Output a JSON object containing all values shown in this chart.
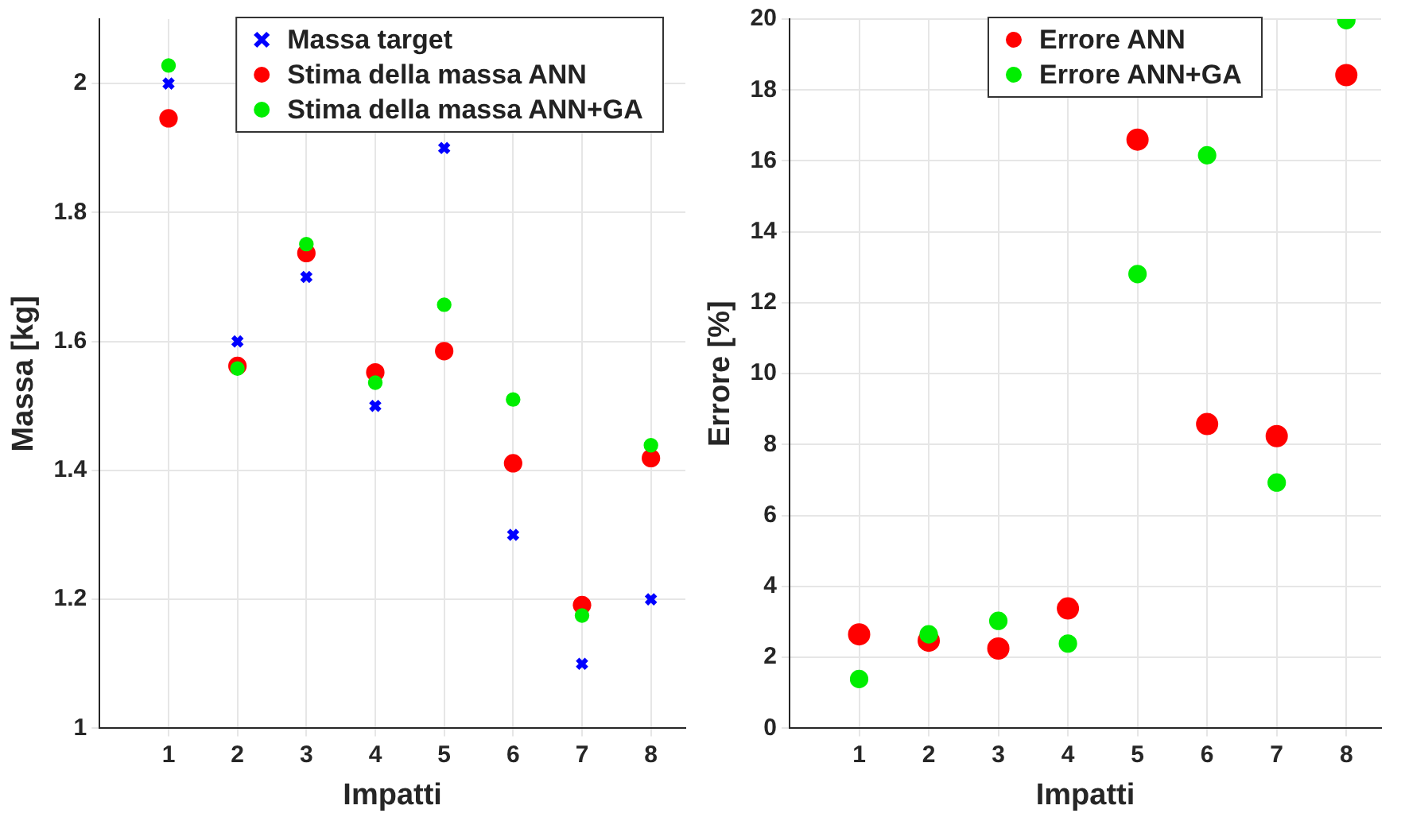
{
  "chart_data": [
    {
      "type": "scatter",
      "xlabel": "Impatti",
      "ylabel": "Massa [kg]",
      "x": [
        1,
        2,
        3,
        4,
        5,
        6,
        7,
        8
      ],
      "xlim": [
        0,
        8.5
      ],
      "xticks": [
        1,
        2,
        3,
        4,
        5,
        6,
        7,
        8
      ],
      "ylim": [
        1,
        2.1
      ],
      "yticks": [
        1,
        1.2,
        1.4,
        1.6,
        1.8,
        2
      ],
      "grid": true,
      "legend": "top right",
      "series": [
        {
          "name": "Massa target",
          "color": "#0000ff",
          "marker": "cross",
          "values": [
            2.0,
            1.6,
            1.7,
            1.5,
            1.9,
            1.3,
            1.1,
            1.2
          ]
        },
        {
          "name": "Stima della massa ANN",
          "color": "#ff0000",
          "marker": "circle",
          "values": [
            1.946,
            1.562,
            1.737,
            1.552,
            1.585,
            1.411,
            1.191,
            1.419
          ]
        },
        {
          "name": "Stima della massa ANN+GA",
          "color": "#00ee00",
          "marker": "circle",
          "values": [
            2.028,
            1.558,
            1.751,
            1.536,
            1.657,
            1.51,
            1.175,
            1.439
          ]
        }
      ]
    },
    {
      "type": "scatter",
      "xlabel": "Impatti",
      "ylabel": "Errore [%]",
      "x": [
        1,
        2,
        3,
        4,
        5,
        6,
        7,
        8
      ],
      "xlim": [
        0,
        8.5
      ],
      "xticks": [
        1,
        2,
        3,
        4,
        5,
        6,
        7,
        8
      ],
      "ylim": [
        0,
        20
      ],
      "yticks": [
        0,
        2,
        4,
        6,
        8,
        10,
        12,
        14,
        16,
        18,
        20
      ],
      "grid": true,
      "legend": "top",
      "series": [
        {
          "name": "Errore ANN",
          "color": "#ff0000",
          "marker": "circle",
          "values": [
            2.65,
            2.47,
            2.25,
            3.38,
            16.6,
            8.58,
            8.24,
            18.42
          ]
        },
        {
          "name": "Errore ANN+GA",
          "color": "#00ee00",
          "marker": "circle",
          "values": [
            1.39,
            2.65,
            3.03,
            2.39,
            12.81,
            16.16,
            6.93,
            19.97
          ]
        }
      ]
    }
  ]
}
